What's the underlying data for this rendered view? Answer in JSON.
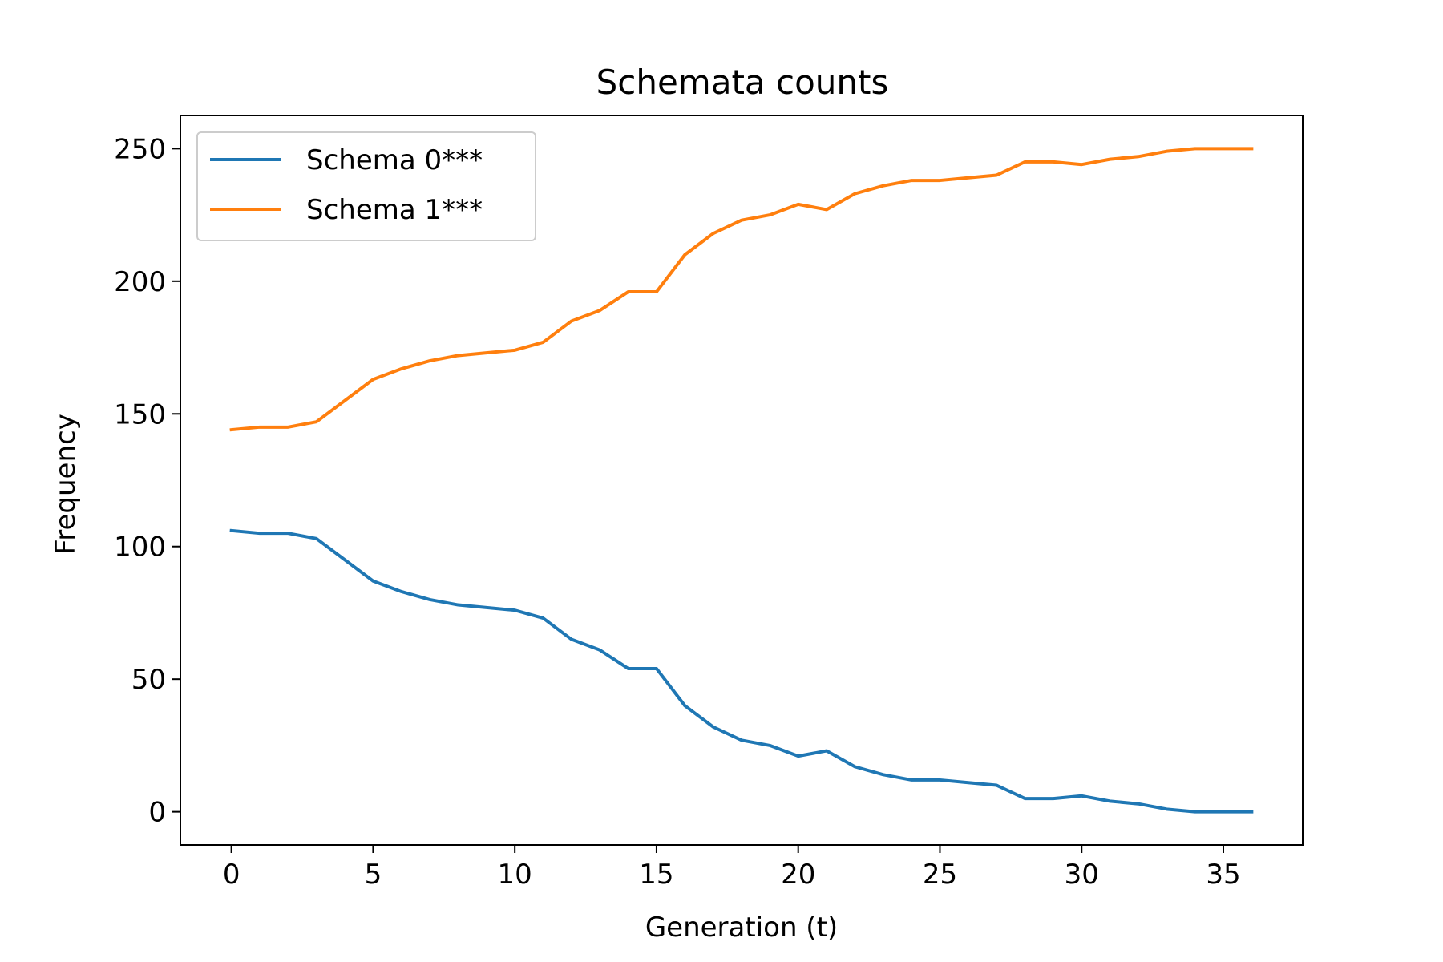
{
  "chart_data": {
    "type": "line",
    "title": "Schemata counts",
    "xlabel": "Generation (t)",
    "ylabel": "Frequency",
    "xlim": [
      -1.8,
      37.8
    ],
    "ylim": [
      -12.5,
      262.5
    ],
    "xticks": [
      0,
      5,
      10,
      15,
      20,
      25,
      30,
      35
    ],
    "yticks": [
      0,
      50,
      100,
      150,
      200,
      250
    ],
    "grid": false,
    "legend_position": "top-left",
    "x": [
      0,
      1,
      2,
      3,
      4,
      5,
      6,
      7,
      8,
      9,
      10,
      11,
      12,
      13,
      14,
      15,
      16,
      17,
      18,
      19,
      20,
      21,
      22,
      23,
      24,
      25,
      26,
      27,
      28,
      29,
      30,
      31,
      32,
      33,
      34,
      35,
      36
    ],
    "series": [
      {
        "name": "Schema 0***",
        "color": "#1f77b4",
        "values": [
          106,
          105,
          105,
          103,
          95,
          87,
          83,
          80,
          78,
          77,
          76,
          73,
          65,
          61,
          54,
          54,
          40,
          32,
          27,
          25,
          21,
          23,
          17,
          14,
          12,
          12,
          11,
          10,
          5,
          5,
          6,
          4,
          3,
          1,
          0,
          0,
          0
        ]
      },
      {
        "name": "Schema 1***",
        "color": "#ff7f0e",
        "values": [
          144,
          145,
          145,
          147,
          155,
          163,
          167,
          170,
          172,
          173,
          174,
          177,
          185,
          189,
          196,
          196,
          210,
          218,
          223,
          225,
          229,
          227,
          233,
          236,
          238,
          238,
          239,
          240,
          245,
          245,
          244,
          246,
          247,
          249,
          250,
          250,
          250
        ]
      }
    ]
  }
}
